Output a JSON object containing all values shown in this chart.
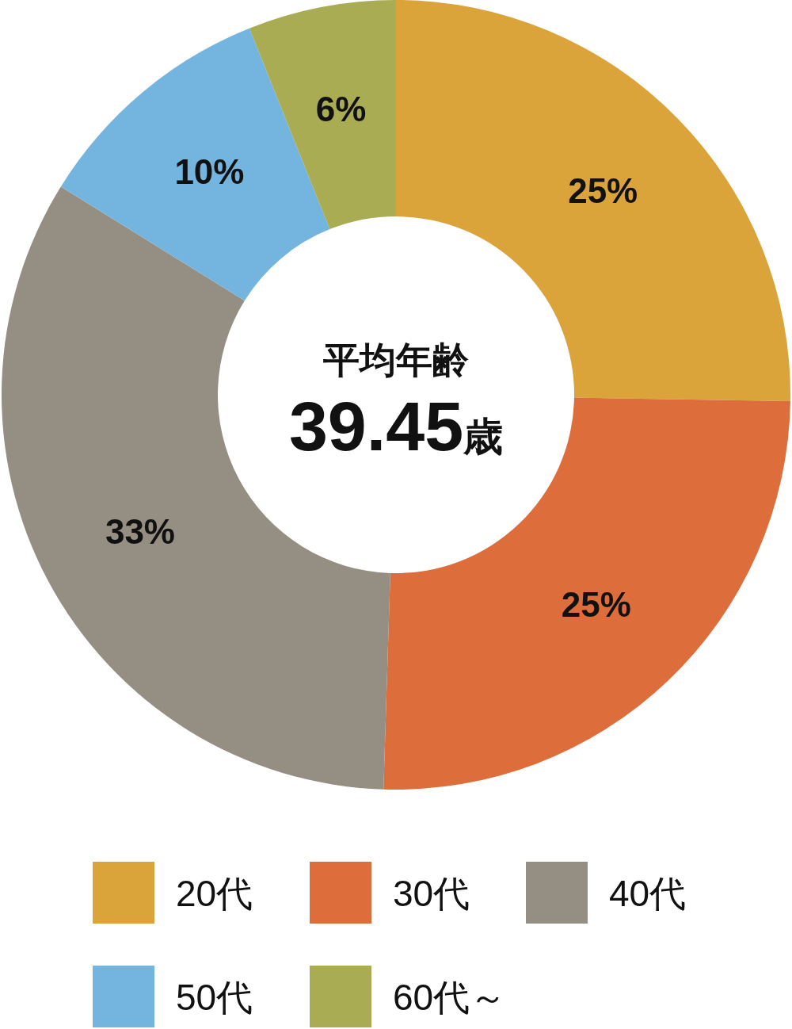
{
  "chart_data": {
    "type": "donut",
    "categories": [
      "20代",
      "30代",
      "40代",
      "50代",
      "60代～"
    ],
    "values": [
      25,
      25,
      33,
      10,
      6
    ],
    "colors": [
      "#dba43b",
      "#dd6d3a",
      "#958e83",
      "#74b5e0",
      "#a9ac52"
    ],
    "value_labels": [
      "25%",
      "25%",
      "33%",
      "10%",
      "6%"
    ],
    "annotations": [
      "平均年齢",
      "39.45歳"
    ],
    "legend": "bottom"
  }
}
